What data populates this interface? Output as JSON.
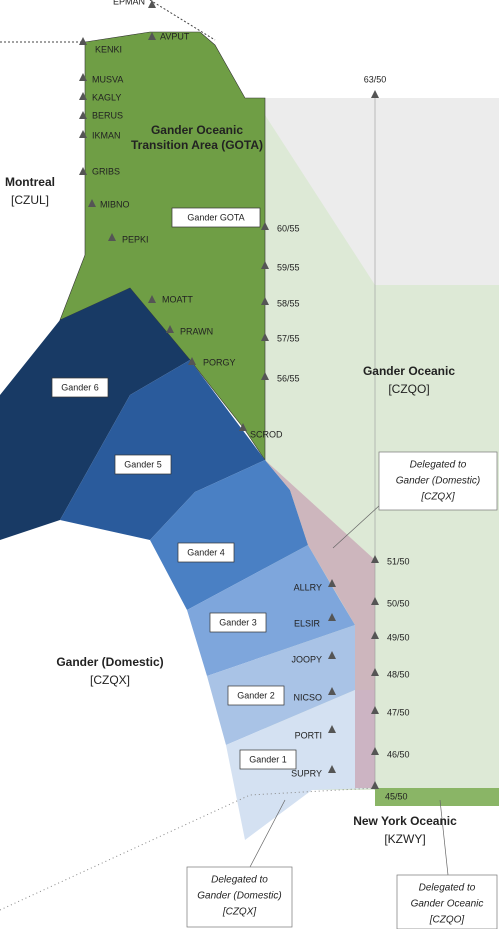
{
  "waypoints": [
    "EPMAN",
    "AVPUT",
    "KENKI",
    "MUSVA",
    "KAGLY",
    "BERUS",
    "IKMAN",
    "GRIBS",
    "MIBNO",
    "PEPKI",
    "MOATT",
    "PRAWN",
    "PORGY",
    "SCROD",
    "ALLRY",
    "ELSIR",
    "JOOPY",
    "NICSO",
    "PORTI",
    "SUPRY"
  ],
  "coordinates": [
    "63/50",
    "60/55",
    "59/55",
    "58/55",
    "57/55",
    "56/55",
    "51/50",
    "50/50",
    "49/50",
    "48/50",
    "47/50",
    "46/50",
    "45/50"
  ],
  "gota": {
    "lines": [
      "Gander Oceanic",
      "Transition Area (GOTA)"
    ]
  },
  "regions": [
    {
      "name": "Montreal",
      "code": "[CZUL]"
    },
    {
      "name": "Gander Oceanic",
      "code": "[CZQO]"
    },
    {
      "name": "Gander (Domestic)",
      "code": "[CZQX]"
    },
    {
      "name": "New York Oceanic",
      "code": "[KZWY]"
    }
  ],
  "sectors": [
    "Gander GOTA",
    "Gander 6",
    "Gander 5",
    "Gander 4",
    "Gander 3",
    "Gander 2",
    "Gander 1"
  ],
  "notes": [
    {
      "lines": [
        "Delegated to",
        "Gander (Domestic)",
        "[CZQX]"
      ]
    },
    {
      "lines": [
        "Delegated to",
        "Gander (Domestic)",
        "[CZQX]"
      ]
    },
    {
      "lines": [
        "Delegated to",
        "Gander Oceanic",
        "[CZQO]"
      ]
    }
  ]
}
